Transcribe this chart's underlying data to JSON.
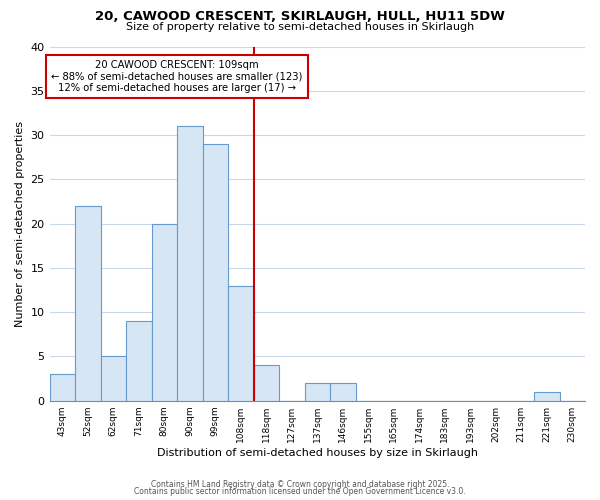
{
  "title1": "20, CAWOOD CRESCENT, SKIRLAUGH, HULL, HU11 5DW",
  "title2": "Size of property relative to semi-detached houses in Skirlaugh",
  "xlabel": "Distribution of semi-detached houses by size in Skirlaugh",
  "ylabel": "Number of semi-detached properties",
  "bins": [
    "43sqm",
    "52sqm",
    "62sqm",
    "71sqm",
    "80sqm",
    "90sqm",
    "99sqm",
    "108sqm",
    "118sqm",
    "127sqm",
    "137sqm",
    "146sqm",
    "155sqm",
    "165sqm",
    "174sqm",
    "183sqm",
    "193sqm",
    "202sqm",
    "211sqm",
    "221sqm",
    "230sqm"
  ],
  "values": [
    3,
    22,
    5,
    9,
    20,
    31,
    29,
    13,
    4,
    0,
    2,
    2,
    0,
    0,
    0,
    0,
    0,
    0,
    0,
    1,
    0
  ],
  "bar_color": "#d6e6f5",
  "bar_edge_color": "#6699cc",
  "vline_x": 7.5,
  "vline_color": "#cc0000",
  "annotation_title": "20 CAWOOD CRESCENT: 109sqm",
  "annotation_line1": "← 88% of semi-detached houses are smaller (123)",
  "annotation_line2": "12% of semi-detached houses are larger (17) →",
  "annotation_box_color": "#cc0000",
  "footer1": "Contains HM Land Registry data © Crown copyright and database right 2025.",
  "footer2": "Contains public sector information licensed under the Open Government Licence v3.0.",
  "background_color": "#ffffff",
  "grid_color": "#c8d8e8",
  "ylim": [
    0,
    40
  ],
  "yticks": [
    0,
    5,
    10,
    15,
    20,
    25,
    30,
    35,
    40
  ]
}
